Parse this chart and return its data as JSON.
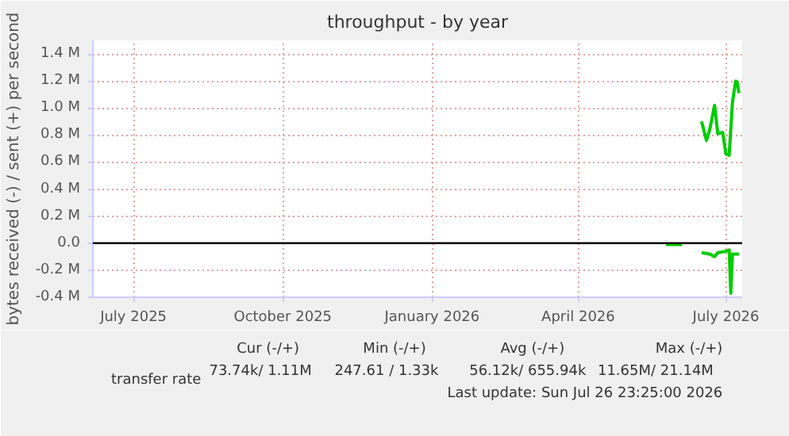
{
  "chart_data": {
    "type": "line",
    "title": "throughput - by year",
    "ylabel": "bytes received (-) / sent (+) per second",
    "xlim": [
      "2025-06-21",
      "2026-07-26"
    ],
    "xticks": [
      {
        "value": "2025-07-16",
        "label": "July 2025"
      },
      {
        "value": "2025-10-16",
        "label": "October 2025"
      },
      {
        "value": "2026-01-16",
        "label": "January 2026"
      },
      {
        "value": "2026-04-16",
        "label": "April 2026"
      },
      {
        "value": "2026-07-16",
        "label": "July 2026"
      }
    ],
    "ylim": [
      -400000,
      1500000
    ],
    "yticks": [
      {
        "value": -400000,
        "label": "-0.4 M"
      },
      {
        "value": -200000,
        "label": "-0.2 M"
      },
      {
        "value": 0,
        "label": "0.0"
      },
      {
        "value": 200000,
        "label": "0.2 M"
      },
      {
        "value": 400000,
        "label": "0.4 M"
      },
      {
        "value": 600000,
        "label": "0.6 M"
      },
      {
        "value": 800000,
        "label": "0.8 M"
      },
      {
        "value": 1000000,
        "label": "1.0 M"
      },
      {
        "value": 1200000,
        "label": "1.2 M"
      },
      {
        "value": 1400000,
        "label": "1.4 M"
      }
    ],
    "grid": true,
    "legend": "bottom",
    "series": [
      {
        "name": "transfer rate",
        "color": "#00cc00",
        "x": [
          "2026-07-01",
          "2026-07-04",
          "2026-07-06",
          "2026-07-09",
          "2026-07-11",
          "2026-07-14",
          "2026-07-16",
          "2026-07-18",
          "2026-07-20",
          "2026-07-22",
          "2026-07-23",
          "2026-07-24"
        ],
        "values": [
          900000,
          760000,
          840000,
          1020000,
          810000,
          820000,
          660000,
          650000,
          1040000,
          1200000,
          1190000,
          1110000
        ]
      },
      {
        "color": "#00cc00",
        "x": [
          "2026-06-09",
          "2026-06-19",
          "2026-06-25",
          "2026-07-01",
          "2026-07-06",
          "2026-07-09",
          "2026-07-11",
          "2026-07-16",
          "2026-07-18",
          "2026-07-19",
          "2026-07-20",
          "2026-07-24"
        ],
        "values": [
          -10000,
          -10000,
          null,
          -70000,
          -80000,
          -100000,
          -70000,
          -60000,
          -50000,
          -370000,
          -80000,
          -80000
        ]
      }
    ],
    "ref_lines": [
      {
        "axis": "y",
        "value": 0,
        "color": "#000000"
      }
    ],
    "annotations": [
      "Cur (-/+)",
      "Min (-/+)",
      "Avg (-/+)",
      "Max (-/+)",
      "73.74k/    1.11M",
      "247.61 /    1.33k",
      "56.12k/  655.94k",
      "11.65M/   21.14M",
      "Last update: Sun Jul 26 23:25:00 2026"
    ]
  }
}
